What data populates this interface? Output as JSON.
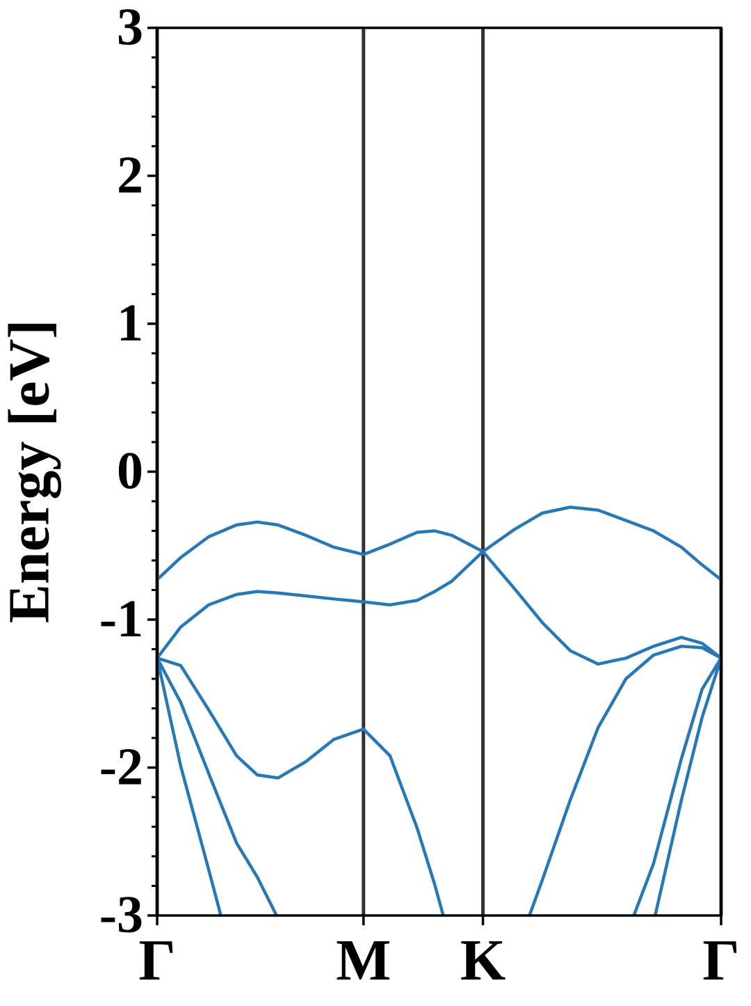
{
  "chart_data": {
    "type": "line",
    "y_label": "Energy [eV]",
    "x": [
      0,
      0.066,
      0.144,
      0.222,
      0.28,
      0.338,
      0.416,
      0.494,
      0.577,
      0.651,
      0.727,
      0.776,
      0.824,
      0.911,
      0.999,
      1.077,
      1.155,
      1.233,
      1.311,
      1.388,
      1.466,
      1.524,
      1.577
    ],
    "xlim": [
      0,
      1.577
    ],
    "xticks": [
      {
        "value": 0,
        "label": "Γ"
      },
      {
        "value": 0.577,
        "label": "M"
      },
      {
        "value": 0.911,
        "label": "K"
      },
      {
        "value": 1.577,
        "label": "Γ"
      }
    ],
    "ylim": [
      -3,
      3
    ],
    "yticks": [
      -3,
      -2,
      -1,
      0,
      1,
      2,
      3
    ],
    "yminorticks": [
      -2.8,
      -2.6,
      -2.4,
      -2.2,
      -1.8,
      -1.6,
      -1.4,
      -1.2,
      -0.8,
      -0.6,
      -0.4,
      -0.2,
      0.2,
      0.4,
      0.6,
      0.8,
      1.2,
      1.4,
      1.6,
      1.8,
      2.2,
      2.4,
      2.6,
      2.8
    ],
    "vline_color": "#333333",
    "series": [
      {
        "color": "#2878b5",
        "values": [
          -0.73,
          -0.58,
          -0.44,
          -0.36,
          -0.34,
          -0.36,
          -0.43,
          -0.51,
          -0.56,
          -0.49,
          -0.41,
          -0.4,
          -0.43,
          -0.54,
          -0.39,
          -0.28,
          -0.24,
          -0.26,
          -0.33,
          -0.4,
          -0.51,
          -0.63,
          -0.73
        ]
      },
      {
        "color": "#2878b5",
        "values": [
          -1.26,
          -1.05,
          -0.9,
          -0.83,
          -0.81,
          -0.82,
          -0.84,
          -0.86,
          -0.88,
          -0.9,
          -0.87,
          -0.81,
          -0.74,
          -0.54,
          -0.79,
          -1.02,
          -1.21,
          -1.3,
          -1.26,
          -1.18,
          -1.12,
          -1.16,
          -1.26
        ]
      },
      {
        "color": "#2878b5",
        "values": [
          -1.26,
          -1.31,
          -1.61,
          -1.92,
          -2.05,
          -2.07,
          -1.96,
          -1.81,
          -1.74,
          -1.92,
          -2.41,
          -2.79,
          -3.21,
          null,
          -3.28,
          -2.76,
          -2.22,
          -1.73,
          -1.4,
          -1.24,
          -1.18,
          -1.19,
          -1.26
        ]
      },
      {
        "color": "#2878b5",
        "values": [
          -1.26,
          -1.56,
          -2.04,
          -2.51,
          -2.74,
          -3.02,
          null,
          null,
          null,
          null,
          null,
          null,
          null,
          null,
          null,
          null,
          null,
          null,
          -3.14,
          -2.65,
          -1.94,
          -1.47,
          -1.26
        ]
      },
      {
        "color": "#2878b5",
        "values": [
          -1.26,
          -1.99,
          -2.69,
          -3.4,
          null,
          null,
          null,
          null,
          null,
          null,
          null,
          null,
          null,
          null,
          null,
          null,
          null,
          null,
          null,
          -3.05,
          -2.22,
          -1.66,
          -1.26
        ]
      }
    ]
  }
}
